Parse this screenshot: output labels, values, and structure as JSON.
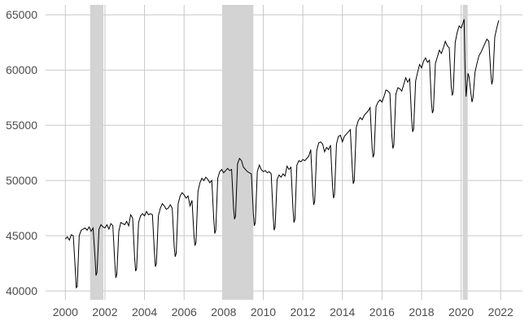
{
  "chart_data": {
    "type": "line",
    "title": "",
    "xlabel": "",
    "ylabel": "",
    "xlim": [
      1999.0,
      2023.1
    ],
    "ylim": [
      39200,
      65900
    ],
    "grid": true,
    "x_ticks": [
      2000,
      2002,
      2004,
      2006,
      2008,
      2010,
      2012,
      2014,
      2016,
      2018,
      2020,
      2022
    ],
    "x_tick_labels": [
      "2000",
      "2002",
      "2004",
      "2006",
      "2008",
      "2010",
      "2012",
      "2014",
      "2016",
      "2018",
      "2020",
      "2022"
    ],
    "y_ticks": [
      40000,
      45000,
      50000,
      55000,
      60000,
      65000
    ],
    "y_tick_labels": [
      "40000",
      "45000",
      "50000",
      "55000",
      "60000",
      "65000"
    ],
    "shaded_periods": [
      {
        "start": 2001.25,
        "end": 2001.92
      },
      {
        "start": 2007.92,
        "end": 2009.5
      },
      {
        "start": 2020.08,
        "end": 2020.33
      }
    ],
    "colors": {
      "line": "#000000",
      "shade": "#d3d3d3",
      "grid": "#c8c8c8",
      "tick_text": "#4d4d4d"
    },
    "series": [
      {
        "points": [
          [
            2000.0,
            44700
          ],
          [
            2000.1,
            44900
          ],
          [
            2000.2,
            44600
          ],
          [
            2000.3,
            45100
          ],
          [
            2000.4,
            45000
          ],
          [
            2000.5,
            42000
          ],
          [
            2000.55,
            40300
          ],
          [
            2000.6,
            40400
          ],
          [
            2000.7,
            45000
          ],
          [
            2000.8,
            45500
          ],
          [
            2000.9,
            45600
          ],
          [
            2001.0,
            45700
          ],
          [
            2001.1,
            45500
          ],
          [
            2001.2,
            45800
          ],
          [
            2001.3,
            45400
          ],
          [
            2001.4,
            45700
          ],
          [
            2001.5,
            43000
          ],
          [
            2001.55,
            41400
          ],
          [
            2001.6,
            41700
          ],
          [
            2001.7,
            45600
          ],
          [
            2001.8,
            46000
          ],
          [
            2001.9,
            45800
          ],
          [
            2002.0,
            45700
          ],
          [
            2002.1,
            46000
          ],
          [
            2002.2,
            45600
          ],
          [
            2002.3,
            46100
          ],
          [
            2002.4,
            45900
          ],
          [
            2002.5,
            42500
          ],
          [
            2002.55,
            41200
          ],
          [
            2002.6,
            41500
          ],
          [
            2002.7,
            45400
          ],
          [
            2002.8,
            46200
          ],
          [
            2002.9,
            46100
          ],
          [
            2003.0,
            46000
          ],
          [
            2003.1,
            46300
          ],
          [
            2003.2,
            45900
          ],
          [
            2003.3,
            46900
          ],
          [
            2003.4,
            46600
          ],
          [
            2003.5,
            43000
          ],
          [
            2003.55,
            41800
          ],
          [
            2003.6,
            42000
          ],
          [
            2003.7,
            46200
          ],
          [
            2003.8,
            46800
          ],
          [
            2003.9,
            47000
          ],
          [
            2004.0,
            46800
          ],
          [
            2004.1,
            47200
          ],
          [
            2004.2,
            46900
          ],
          [
            2004.3,
            47000
          ],
          [
            2004.4,
            46900
          ],
          [
            2004.5,
            43500
          ],
          [
            2004.55,
            42200
          ],
          [
            2004.6,
            42500
          ],
          [
            2004.7,
            46800
          ],
          [
            2004.8,
            47500
          ],
          [
            2004.9,
            47900
          ],
          [
            2005.0,
            47700
          ],
          [
            2005.1,
            47400
          ],
          [
            2005.2,
            47500
          ],
          [
            2005.3,
            47800
          ],
          [
            2005.4,
            47500
          ],
          [
            2005.5,
            44000
          ],
          [
            2005.55,
            43100
          ],
          [
            2005.6,
            43400
          ],
          [
            2005.7,
            47900
          ],
          [
            2005.8,
            48600
          ],
          [
            2005.9,
            48900
          ],
          [
            2006.0,
            48700
          ],
          [
            2006.1,
            48400
          ],
          [
            2006.2,
            48600
          ],
          [
            2006.3,
            47700
          ],
          [
            2006.4,
            48200
          ],
          [
            2006.5,
            45000
          ],
          [
            2006.55,
            44100
          ],
          [
            2006.6,
            44400
          ],
          [
            2006.7,
            49000
          ],
          [
            2006.8,
            49800
          ],
          [
            2006.9,
            50200
          ],
          [
            2007.0,
            50000
          ],
          [
            2007.1,
            50300
          ],
          [
            2007.2,
            50100
          ],
          [
            2007.3,
            49800
          ],
          [
            2007.4,
            50000
          ],
          [
            2007.5,
            46500
          ],
          [
            2007.55,
            45200
          ],
          [
            2007.6,
            45500
          ],
          [
            2007.7,
            50200
          ],
          [
            2007.8,
            50800
          ],
          [
            2007.9,
            51000
          ],
          [
            2008.0,
            50700
          ],
          [
            2008.1,
            50900
          ],
          [
            2008.2,
            51100
          ],
          [
            2008.3,
            50900
          ],
          [
            2008.4,
            51000
          ],
          [
            2008.5,
            47500
          ],
          [
            2008.55,
            46500
          ],
          [
            2008.6,
            46800
          ],
          [
            2008.7,
            51500
          ],
          [
            2008.8,
            52000
          ],
          [
            2008.9,
            51800
          ],
          [
            2009.0,
            51200
          ],
          [
            2009.1,
            51000
          ],
          [
            2009.2,
            50800
          ],
          [
            2009.3,
            50700
          ],
          [
            2009.4,
            50600
          ],
          [
            2009.5,
            47000
          ],
          [
            2009.55,
            45900
          ],
          [
            2009.6,
            46200
          ],
          [
            2009.7,
            50800
          ],
          [
            2009.8,
            51400
          ],
          [
            2009.9,
            51000
          ],
          [
            2010.0,
            50800
          ],
          [
            2010.1,
            50900
          ],
          [
            2010.2,
            50700
          ],
          [
            2010.3,
            50800
          ],
          [
            2010.4,
            50600
          ],
          [
            2010.5,
            46800
          ],
          [
            2010.55,
            45500
          ],
          [
            2010.6,
            45800
          ],
          [
            2010.7,
            50100
          ],
          [
            2010.8,
            50500
          ],
          [
            2010.9,
            50300
          ],
          [
            2011.0,
            50600
          ],
          [
            2011.1,
            50400
          ],
          [
            2011.2,
            51300
          ],
          [
            2011.3,
            51000
          ],
          [
            2011.4,
            51200
          ],
          [
            2011.5,
            47500
          ],
          [
            2011.55,
            46200
          ],
          [
            2011.6,
            46500
          ],
          [
            2011.7,
            51400
          ],
          [
            2011.8,
            51800
          ],
          [
            2011.9,
            51700
          ],
          [
            2012.0,
            51900
          ],
          [
            2012.1,
            51800
          ],
          [
            2012.2,
            52000
          ],
          [
            2012.3,
            52200
          ],
          [
            2012.4,
            52800
          ],
          [
            2012.5,
            49000
          ],
          [
            2012.55,
            47800
          ],
          [
            2012.6,
            48100
          ],
          [
            2012.7,
            52700
          ],
          [
            2012.8,
            53400
          ],
          [
            2012.9,
            53500
          ],
          [
            2013.0,
            53300
          ],
          [
            2013.1,
            52600
          ],
          [
            2013.2,
            53000
          ],
          [
            2013.3,
            52800
          ],
          [
            2013.4,
            53200
          ],
          [
            2013.5,
            49500
          ],
          [
            2013.55,
            48400
          ],
          [
            2013.6,
            48700
          ],
          [
            2013.7,
            53300
          ],
          [
            2013.8,
            54000
          ],
          [
            2013.9,
            54100
          ],
          [
            2014.0,
            53500
          ],
          [
            2014.1,
            54000
          ],
          [
            2014.2,
            54200
          ],
          [
            2014.3,
            54400
          ],
          [
            2014.4,
            54600
          ],
          [
            2014.5,
            51000
          ],
          [
            2014.55,
            49700
          ],
          [
            2014.6,
            50000
          ],
          [
            2014.7,
            54800
          ],
          [
            2014.8,
            55400
          ],
          [
            2014.9,
            55700
          ],
          [
            2015.0,
            55500
          ],
          [
            2015.1,
            55900
          ],
          [
            2015.2,
            56100
          ],
          [
            2015.3,
            56300
          ],
          [
            2015.4,
            56600
          ],
          [
            2015.5,
            53000
          ],
          [
            2015.55,
            52100
          ],
          [
            2015.6,
            52400
          ],
          [
            2015.7,
            56700
          ],
          [
            2015.8,
            57100
          ],
          [
            2015.9,
            57300
          ],
          [
            2016.0,
            57100
          ],
          [
            2016.1,
            57600
          ],
          [
            2016.2,
            58200
          ],
          [
            2016.3,
            58100
          ],
          [
            2016.4,
            57900
          ],
          [
            2016.5,
            54000
          ],
          [
            2016.55,
            52900
          ],
          [
            2016.6,
            53200
          ],
          [
            2016.7,
            57800
          ],
          [
            2016.8,
            58400
          ],
          [
            2016.9,
            58300
          ],
          [
            2017.0,
            58100
          ],
          [
            2017.1,
            58700
          ],
          [
            2017.2,
            59300
          ],
          [
            2017.3,
            58900
          ],
          [
            2017.4,
            59200
          ],
          [
            2017.5,
            55500
          ],
          [
            2017.55,
            54400
          ],
          [
            2017.6,
            54700
          ],
          [
            2017.7,
            59000
          ],
          [
            2017.8,
            59800
          ],
          [
            2017.9,
            60500
          ],
          [
            2018.0,
            60200
          ],
          [
            2018.1,
            60800
          ],
          [
            2018.2,
            61100
          ],
          [
            2018.3,
            60700
          ],
          [
            2018.4,
            60900
          ],
          [
            2018.5,
            57000
          ],
          [
            2018.55,
            56100
          ],
          [
            2018.6,
            56400
          ],
          [
            2018.7,
            60600
          ],
          [
            2018.8,
            61200
          ],
          [
            2018.9,
            61800
          ],
          [
            2019.0,
            61500
          ],
          [
            2019.1,
            62000
          ],
          [
            2019.2,
            62600
          ],
          [
            2019.3,
            62200
          ],
          [
            2019.4,
            62000
          ],
          [
            2019.5,
            58500
          ],
          [
            2019.55,
            57700
          ],
          [
            2019.6,
            58000
          ],
          [
            2019.7,
            62500
          ],
          [
            2019.8,
            63400
          ],
          [
            2019.9,
            64000
          ],
          [
            2020.0,
            63800
          ],
          [
            2020.1,
            64300
          ],
          [
            2020.15,
            64600
          ],
          [
            2020.2,
            60000
          ],
          [
            2020.25,
            57600
          ],
          [
            2020.3,
            58700
          ],
          [
            2020.35,
            59700
          ],
          [
            2020.4,
            59400
          ],
          [
            2020.5,
            57800
          ],
          [
            2020.55,
            57100
          ],
          [
            2020.6,
            57500
          ],
          [
            2020.7,
            59800
          ],
          [
            2020.8,
            60600
          ],
          [
            2020.9,
            61300
          ],
          [
            2021.0,
            61600
          ],
          [
            2021.1,
            62000
          ],
          [
            2021.2,
            62400
          ],
          [
            2021.3,
            62800
          ],
          [
            2021.4,
            62600
          ],
          [
            2021.5,
            59700
          ],
          [
            2021.55,
            58700
          ],
          [
            2021.6,
            59100
          ],
          [
            2021.7,
            63000
          ],
          [
            2021.8,
            63800
          ],
          [
            2021.9,
            64500
          ]
        ]
      }
    ]
  }
}
